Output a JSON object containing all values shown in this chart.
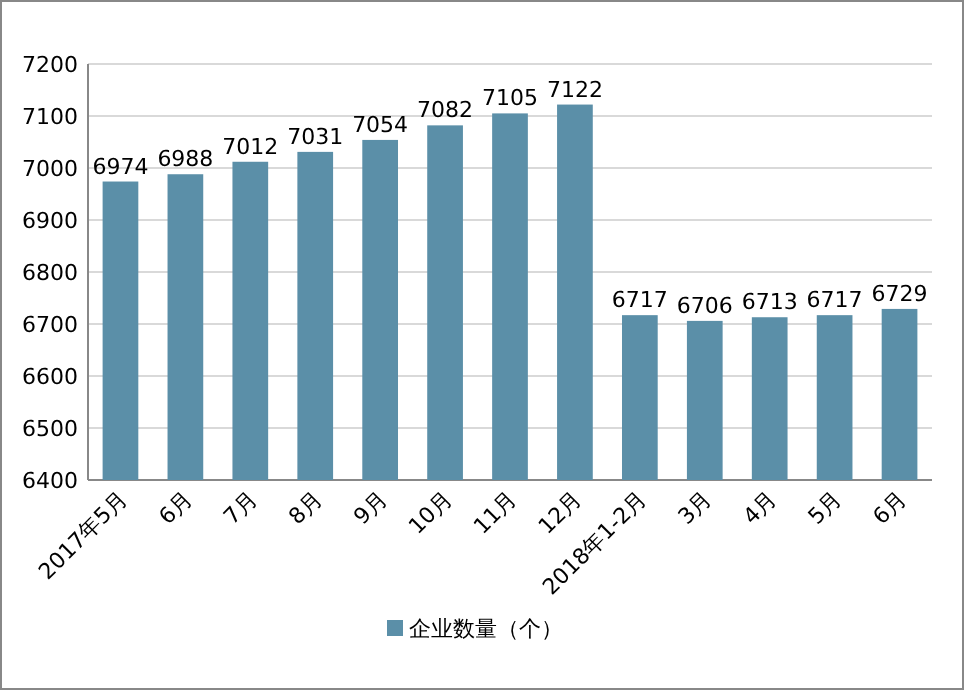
{
  "chart_data": {
    "type": "bar",
    "categories": [
      "2017年5月",
      "6月",
      "7月",
      "8月",
      "9月",
      "10月",
      "11月",
      "12月",
      "2018年1-2月",
      "3月",
      "4月",
      "5月",
      "6月"
    ],
    "series": [
      {
        "name": "企业数量（个）",
        "color": "#5b8fa8",
        "values": [
          6974,
          6988,
          7012,
          7031,
          7054,
          7082,
          7105,
          7122,
          6717,
          6706,
          6713,
          6717,
          6729
        ]
      }
    ],
    "ylim": [
      6400,
      7200
    ],
    "yticks": [
      6400,
      6500,
      6600,
      6700,
      6800,
      6900,
      7000,
      7100,
      7200
    ],
    "grid": "y",
    "legend": "bottom",
    "data_labels": true
  }
}
